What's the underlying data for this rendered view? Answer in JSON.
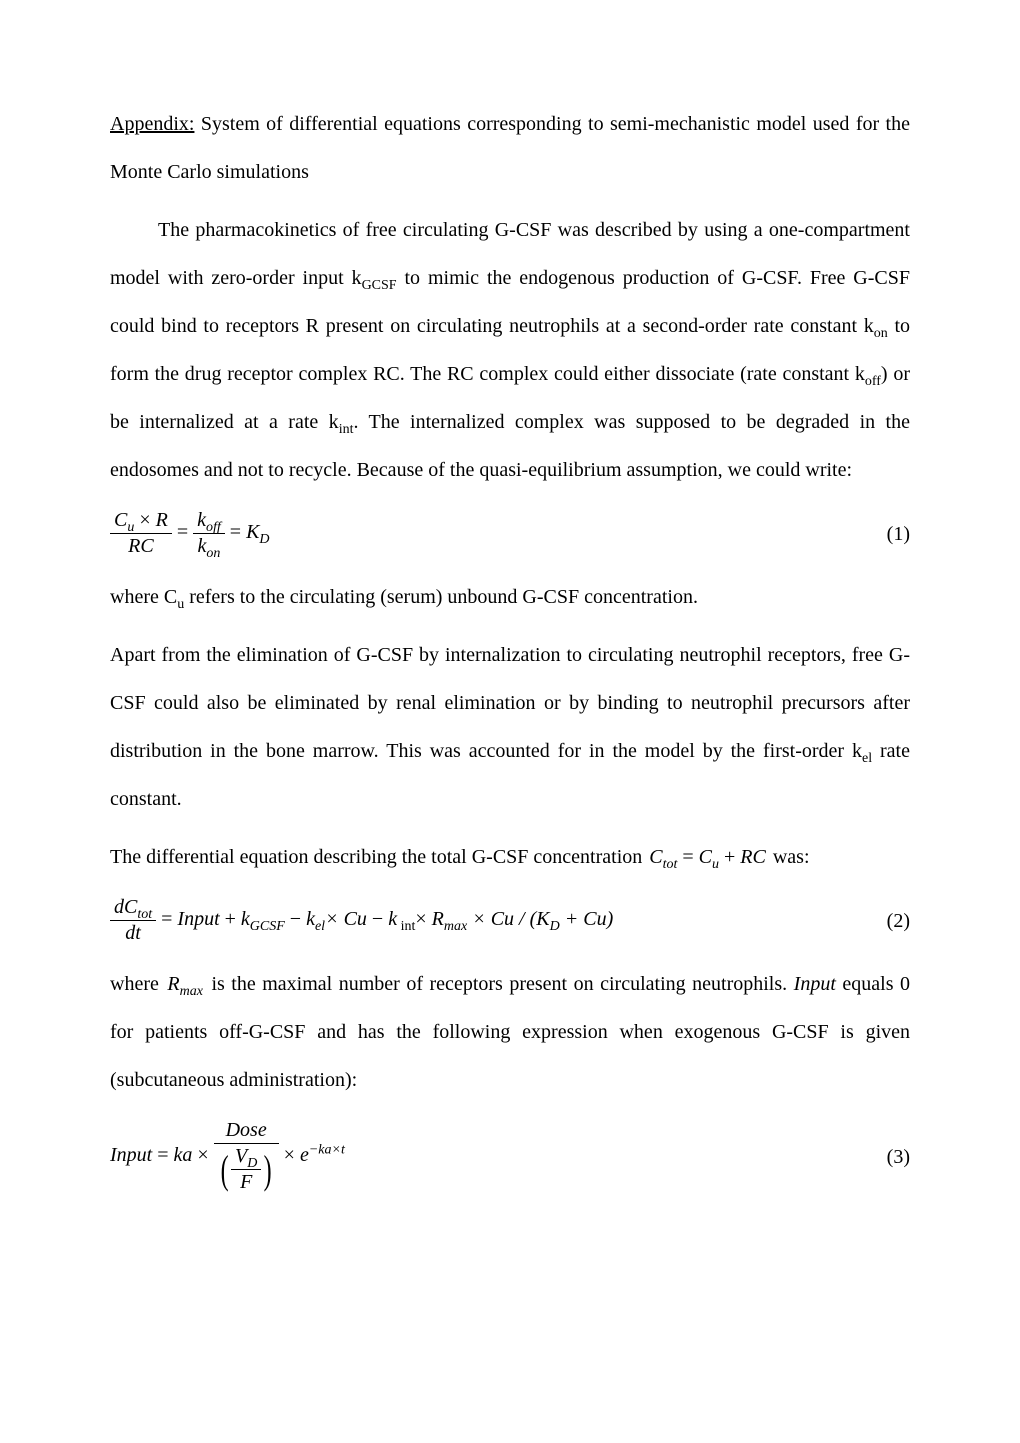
{
  "font": {
    "family": "Times New Roman",
    "body_size_pt": 15
  },
  "colors": {
    "text": "#000000",
    "background": "#ffffff"
  },
  "title": {
    "underline_word": "Appendix:",
    "rest": " System of differential equations corresponding to semi-mechanistic model used for the Monte Carlo simulations"
  },
  "paragraphs": {
    "p1_a": "The pharmacokinetics of free circulating G-CSF was described by using a one-compartment model with zero-order input k",
    "p1_sub1": "GCSF",
    "p1_b": " to mimic the endogenous production of G-CSF. Free G-CSF could bind to receptors R present on circulating neutrophils at a second-order rate constant k",
    "p1_sub2": "on",
    "p1_c": " to form the drug receptor complex RC. The RC complex could either dissociate (rate constant k",
    "p1_sub3": "off",
    "p1_d": ") or be internalized at a rate k",
    "p1_sub4": "int",
    "p1_e": ". The internalized complex was supposed to be degraded in the endosomes and not to recycle. Because of the quasi-equilibrium assumption, we could write:",
    "p2_a": "where C",
    "p2_sub1": "u",
    "p2_b": " refers to the circulating (serum) unbound G-CSF concentration.",
    "p3_a": "Apart from the elimination of G-CSF by internalization to circulating neutrophil receptors, free G-CSF could also be eliminated by renal elimination or by binding to neutrophil precursors after distribution in the bone marrow. This was accounted for in the model by the first-order k",
    "p3_sub1": "el",
    "p3_b": " rate constant.",
    "p4_a": "The differential equation describing the total G-CSF concentration ",
    "p4_b": " was:",
    "p5_a": "where ",
    "p5_b": " is the maximal number of receptors present on circulating neutrophils.  ",
    "p5_c": " equals 0 for patients off-G-CSF and has the following expression when exogenous G-CSF is given (subcutaneous administration):"
  },
  "inline_eq": {
    "ctot": {
      "lhs_sym": "C",
      "lhs_sub": "tot",
      "eq": " = ",
      "t1_sym": "C",
      "t1_sub": "u",
      "plus": " + ",
      "t2": "RC"
    },
    "rmax": {
      "sym": "R",
      "sub": "max"
    },
    "input_word": "Input"
  },
  "equations": {
    "eq1": {
      "number": "(1)",
      "frac1_num_a": "C",
      "frac1_num_sub": "u",
      "frac1_num_b": " × ",
      "frac1_num_c": "R",
      "frac1_den": "RC",
      "eq1": " = ",
      "frac2_num_a": "k",
      "frac2_num_sub": "off",
      "frac2_den_a": "k",
      "frac2_den_sub": "on",
      "eq2": " = ",
      "rhs_a": "K",
      "rhs_sub": "D"
    },
    "eq2": {
      "number": "(2)",
      "lhs_frac_num_a": "dC",
      "lhs_frac_num_sub": "tot",
      "lhs_frac_den": "dt",
      "eq": " = ",
      "t1": "Input",
      "p1": " + ",
      "t2_a": "k",
      "t2_sub": "GCSF",
      "m1": " − ",
      "t3_a": "k",
      "t3_sub": "el",
      "t3_b": "× Cu",
      "m2": " − ",
      "t4_a": "k",
      "t4_sub": " int",
      "t4_b": "× ",
      "t5_a": "R",
      "t5_sub": "max",
      "t6": " × Cu / (K",
      "t6_sub": "D",
      "t6_b": " + Cu)"
    },
    "eq3": {
      "number": "(3)",
      "lhs": "Input",
      "eq1": " = ",
      "t1": "ka",
      "times1": "× ",
      "frac_num": "Dose",
      "paren_frac_num": "V",
      "paren_frac_num_sub": "D",
      "paren_frac_den": "F",
      "times2": "× ",
      "e": "e",
      "exp": "−ka×t"
    }
  }
}
